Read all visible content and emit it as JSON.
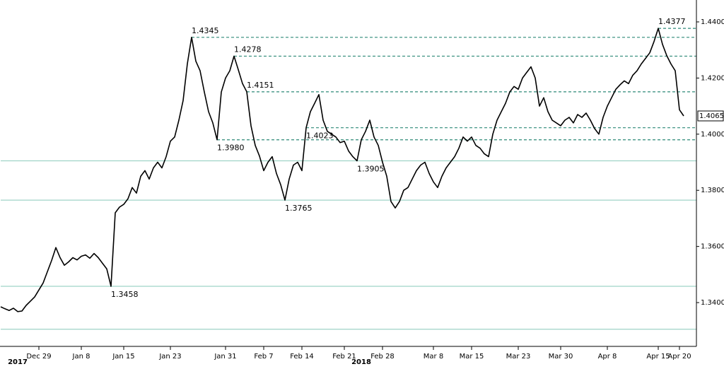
{
  "chart_data": {
    "type": "line",
    "series": [
      {
        "color": "#000000",
        "show_last": true,
        "values": [
          1.3385,
          1.3378,
          1.3372,
          1.338,
          1.3368,
          1.337,
          1.339,
          1.3405,
          1.342,
          1.3445,
          1.347,
          1.351,
          1.355,
          1.3596,
          1.356,
          1.3533,
          1.3545,
          1.356,
          1.3552,
          1.3565,
          1.357,
          1.3558,
          1.3575,
          1.356,
          1.354,
          1.352,
          1.3458,
          1.372,
          1.374,
          1.375,
          1.377,
          1.381,
          1.379,
          1.385,
          1.387,
          1.384,
          1.388,
          1.39,
          1.388,
          1.392,
          1.3975,
          1.399,
          1.405,
          1.412,
          1.4251,
          1.4345,
          1.426,
          1.4226,
          1.415,
          1.408,
          1.404,
          1.398,
          1.415,
          1.42,
          1.4226,
          1.4278,
          1.423,
          1.418,
          1.4151,
          1.403,
          1.396,
          1.3922,
          1.387,
          1.39,
          1.392,
          1.386,
          1.382,
          1.3765,
          1.384,
          1.389,
          1.39,
          1.387,
          1.4023,
          1.408,
          1.411,
          1.4141,
          1.405,
          1.401,
          1.4,
          1.399,
          1.397,
          1.3975,
          1.394,
          1.392,
          1.3905,
          1.398,
          1.401,
          1.405,
          1.399,
          1.396,
          1.39,
          1.385,
          1.376,
          1.3737,
          1.376,
          1.38,
          1.381,
          1.384,
          1.387,
          1.389,
          1.39,
          1.386,
          1.383,
          1.381,
          1.385,
          1.388,
          1.39,
          1.392,
          1.395,
          1.399,
          1.3975,
          1.399,
          1.396,
          1.395,
          1.393,
          1.392,
          1.4,
          1.405,
          1.408,
          1.411,
          1.415,
          1.417,
          1.416,
          1.42,
          1.422,
          1.424,
          1.42,
          1.41,
          1.413,
          1.408,
          1.405,
          1.404,
          1.403,
          1.405,
          1.406,
          1.404,
          1.407,
          1.406,
          1.4075,
          1.405,
          1.402,
          1.4,
          1.406,
          1.41,
          1.413,
          1.416,
          1.4176,
          1.419,
          1.418,
          1.421,
          1.4226,
          1.425,
          1.427,
          1.429,
          1.433,
          1.4377,
          1.432,
          1.428,
          1.425,
          1.4226,
          1.4087,
          1.4065
        ]
      }
    ],
    "x": [
      0,
      1,
      2,
      3,
      4,
      5,
      6,
      7,
      8,
      9,
      10,
      11,
      12,
      13,
      14,
      15,
      16,
      17,
      18,
      19,
      20,
      21,
      22,
      23,
      24,
      25,
      26,
      27,
      28,
      29,
      30,
      31,
      32,
      33,
      34,
      35,
      36,
      37,
      38,
      39,
      40,
      41,
      42,
      43,
      44,
      45,
      46,
      47,
      48,
      49,
      50,
      51,
      52,
      53,
      54,
      55,
      56,
      57,
      58,
      59,
      60,
      61,
      62,
      63,
      64,
      65,
      66,
      67,
      68,
      69,
      70,
      71,
      72,
      73,
      74,
      75,
      76,
      77,
      78,
      79,
      80,
      81,
      82,
      83,
      84,
      85,
      86,
      87,
      88,
      89,
      90,
      91,
      92,
      93,
      94,
      95,
      96,
      97,
      98,
      99,
      100,
      101,
      102,
      103,
      104,
      105,
      106,
      107,
      108,
      109,
      110,
      111,
      112,
      113,
      114,
      115,
      116,
      117,
      118,
      119,
      120,
      121,
      122,
      123,
      124,
      125,
      126,
      127,
      128,
      129,
      130,
      131,
      132,
      133,
      134,
      135,
      136,
      137,
      138,
      139,
      140,
      141,
      142,
      143,
      144,
      145,
      146,
      147,
      148,
      149,
      150,
      151,
      152,
      153,
      154,
      155,
      156,
      157,
      158,
      159,
      160,
      161
    ],
    "xlim": [
      0,
      164
    ],
    "xticks": [
      {
        "value": 9,
        "label": "Dec 29"
      },
      {
        "value": 19,
        "label": "Jan 8"
      },
      {
        "value": 29,
        "label": "Jan 15"
      },
      {
        "value": 40,
        "label": "Jan 23"
      },
      {
        "value": 53,
        "label": "Jan 31"
      },
      {
        "value": 62,
        "label": "Feb 7"
      },
      {
        "value": 71,
        "label": "Feb 14"
      },
      {
        "value": 81,
        "label": "Feb 21"
      },
      {
        "value": 90,
        "label": "Feb 28"
      },
      {
        "value": 102,
        "label": "Mar 8"
      },
      {
        "value": 111,
        "label": "Mar 15"
      },
      {
        "value": 122,
        "label": "Mar 23"
      },
      {
        "value": 132,
        "label": "Mar 30"
      },
      {
        "value": 143,
        "label": "Apr 8"
      },
      {
        "value": 155,
        "label": "Apr 15"
      },
      {
        "value": 160,
        "label": "Apr 20"
      }
    ],
    "year_ticks": [
      {
        "value": 4,
        "label": "2017"
      },
      {
        "value": 85,
        "label": "2018"
      }
    ],
    "ylim": [
      1.3244,
      1.4478
    ],
    "yticks": [
      {
        "value": 1.34,
        "label": "1.3400"
      },
      {
        "value": 1.36,
        "label": "1.3600"
      },
      {
        "value": 1.38,
        "label": "1.3800"
      },
      {
        "value": 1.4,
        "label": "1.4000"
      },
      {
        "value": 1.42,
        "label": "1.4200"
      },
      {
        "value": 1.44,
        "label": "1.4400"
      }
    ],
    "levels": [
      {
        "value": 1.4377,
        "label": "1.4377",
        "style": "dashed",
        "label_position": "above"
      },
      {
        "value": 1.4345,
        "label": "1.4345",
        "style": "dashed",
        "label_position": "above"
      },
      {
        "value": 1.4278,
        "label": "1.4278",
        "style": "dashed",
        "label_position": "above"
      },
      {
        "value": 1.4151,
        "label": "1.4151",
        "style": "dashed",
        "label_position": "above"
      },
      {
        "value": 1.4023,
        "label": "1.4023",
        "style": "dashed",
        "label_position": "below"
      },
      {
        "value": 1.398,
        "label": "1.3980",
        "style": "dashed",
        "label_position": "below"
      },
      {
        "value": 1.3905,
        "label": "1.3905",
        "style": "solid",
        "label_position": "below"
      },
      {
        "value": 1.3765,
        "label": "1.3765",
        "style": "solid",
        "label_position": "below"
      },
      {
        "value": 1.3458,
        "label": "1.3458",
        "style": "solid",
        "label_position": "below"
      },
      {
        "value": 1.3305,
        "style": "solid"
      }
    ],
    "level_colors": {
      "dashed": "#2e8a78",
      "solid": "#9fd3c7"
    }
  }
}
